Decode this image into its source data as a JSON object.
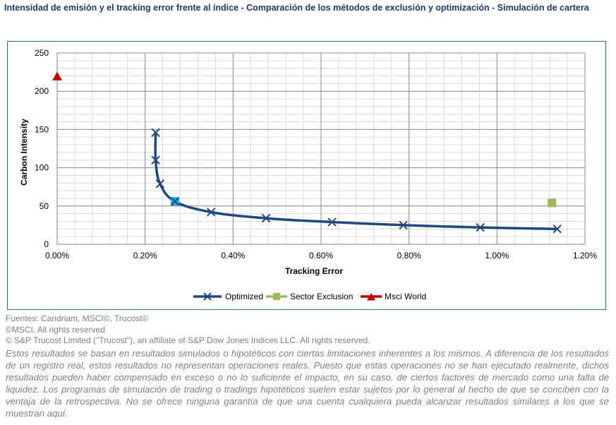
{
  "title": "Intensidad de emisión y  el tracking error frente al índice - Comparación de los métodos de exclusión y optimización - Simulación de cartera",
  "chart_data": {
    "type": "scatter",
    "xlabel": "Tracking Error",
    "ylabel": "Carbon Intensity",
    "xlim": [
      0,
      1.2
    ],
    "ylim": [
      0,
      250
    ],
    "x_ticks": [
      0,
      0.2,
      0.4,
      0.6,
      0.8,
      1.0,
      1.2
    ],
    "x_tick_labels": [
      "0.00%",
      "0.20%",
      "0.40%",
      "0.60%",
      "0.80%",
      "1.00%",
      "1.20%"
    ],
    "y_ticks": [
      0,
      50,
      100,
      150,
      200,
      250
    ],
    "y_tick_labels": [
      "0",
      "50",
      "100",
      "150",
      "200",
      "250"
    ],
    "grid": true,
    "legend_position": "bottom",
    "series": [
      {
        "name": "Optimized",
        "marker": "x",
        "color": "#1f497d",
        "x": [
          0.224,
          0.224,
          0.234,
          0.268,
          0.35,
          0.475,
          0.625,
          0.787,
          0.962,
          1.137
        ],
        "y": [
          146,
          110,
          79,
          56,
          42,
          34,
          29,
          25,
          22,
          20
        ]
      },
      {
        "name": "Sector Exclusion",
        "marker": "square",
        "color": "#9bbb59",
        "x": [
          1.125
        ],
        "y": [
          54
        ]
      },
      {
        "name": "Msci World",
        "marker": "triangle",
        "color": "#c00000",
        "x": [
          0.0
        ],
        "y": [
          219
        ]
      }
    ],
    "highlight": {
      "x": 0.268,
      "y": 56,
      "color": "#00b0f0"
    }
  },
  "notes": [
    "Fuentes: Candriam, MSCI©, Trucost©",
    "©MSCI. All rights reserved",
    "© S&P Trucost Limited (\"Trucost\"), an affiliate of S&P Dow Jones Indices LLC. All rights reserved."
  ],
  "disclaimer": "Estos resultados se basan en resultados simulados o hipotéticos con ciertas limitaciones inherentes a los mismos. A diferencia de los resultados de un registro real, estos resultados no representan operaciones reales. Puesto que estas operaciones no se han ejecutado realmente, dichos resultados pueden haber compensado en exceso o no lo suficiente el impacto, en su caso, de ciertos factores de mercado como una falta de liquidez.  Los programas de simulación de trading o tradings hipotéticos suelen estar sujetos por lo general al hecho de que se conciben con la ventaja de la retrospectiva. No se ofrece ninguna garantía de que una cuenta cualquiera pueda alcanzar resultados similares a los que se muestran aquí."
}
